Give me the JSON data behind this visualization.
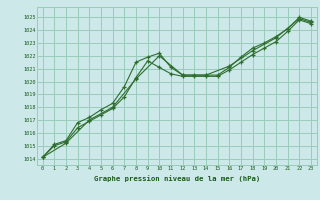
{
  "title": "Graphe pression niveau de la mer (hPa)",
  "bg_color": "#cce8e8",
  "grid_color": "#99ccbb",
  "line_color": "#2d6e2d",
  "marker_color": "#2d6e2d",
  "xlim": [
    -0.5,
    23.5
  ],
  "ylim": [
    1013.5,
    1025.8
  ],
  "yticks": [
    1014,
    1015,
    1016,
    1017,
    1018,
    1019,
    1020,
    1021,
    1022,
    1023,
    1024,
    1025
  ],
  "xticks": [
    0,
    1,
    2,
    3,
    4,
    5,
    6,
    7,
    8,
    9,
    10,
    11,
    12,
    13,
    14,
    15,
    16,
    17,
    18,
    19,
    20,
    21,
    22,
    23
  ],
  "series": [
    {
      "x": [
        0,
        1,
        2,
        3,
        4,
        5,
        6,
        7,
        8,
        9,
        10,
        11,
        12,
        13,
        14,
        15,
        16,
        17,
        18,
        19,
        20,
        21,
        22,
        23
      ],
      "y": [
        1014.1,
        1015.1,
        1015.4,
        1016.8,
        1017.2,
        1017.8,
        1018.3,
        1019.6,
        1021.5,
        1021.9,
        1022.2,
        1021.1,
        1020.5,
        1020.5,
        1020.5,
        1020.5,
        1021.1,
        1021.9,
        1022.6,
        1023.0,
        1023.5,
        1024.1,
        1025.0,
        1024.7
      ]
    },
    {
      "x": [
        0,
        1,
        2,
        3,
        4,
        5,
        6,
        7,
        8,
        9,
        10,
        11,
        12,
        13,
        14,
        15,
        16,
        17,
        18,
        19,
        20,
        21,
        22,
        23
      ],
      "y": [
        1014.1,
        1015.0,
        1015.3,
        1016.4,
        1016.9,
        1017.4,
        1017.9,
        1018.8,
        1020.3,
        1021.6,
        1021.1,
        1020.6,
        1020.4,
        1020.4,
        1020.4,
        1020.4,
        1020.9,
        1021.5,
        1022.1,
        1022.6,
        1023.1,
        1023.9,
        1024.8,
        1024.5
      ]
    },
    {
      "x": [
        0,
        2,
        4,
        6,
        8,
        10,
        12,
        14,
        16,
        18,
        20,
        22,
        23
      ],
      "y": [
        1014.1,
        1015.2,
        1017.0,
        1018.0,
        1020.2,
        1022.0,
        1020.5,
        1020.5,
        1021.2,
        1022.4,
        1023.4,
        1024.9,
        1024.6
      ]
    }
  ]
}
